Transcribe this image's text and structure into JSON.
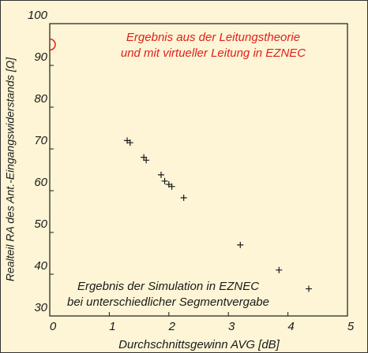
{
  "chart_data": {
    "type": "scatter",
    "xlabel": "Durchschnittsgewinn AVG [dB]",
    "ylabel": "Realteil RA des Ant.-Eingangswiderstands [Ω]",
    "xlim": [
      0,
      5
    ],
    "xticks": [
      0,
      1,
      2,
      3,
      4,
      5
    ],
    "ylim": [
      30,
      100
    ],
    "yticks": [
      30,
      40,
      50,
      60,
      70,
      80,
      90,
      100
    ],
    "grid": false,
    "background": "#fdf5d6",
    "series": [
      {
        "color": "#1a1a1a",
        "marker": "plus",
        "x": [
          1.3,
          1.35,
          1.58,
          1.62,
          1.87,
          1.93,
          2.0,
          2.05,
          2.25,
          3.2,
          3.85,
          4.35
        ],
        "values": [
          72,
          71.5,
          68,
          67.3,
          63.8,
          62.3,
          61.5,
          61,
          58.3,
          47,
          41,
          36.5
        ]
      },
      {
        "color": "#e0201b",
        "marker": "circle",
        "x": [
          0
        ],
        "values": [
          95
        ]
      }
    ],
    "annotations": [
      {
        "text": "Ergebnis aus der Leitungstheorie",
        "color": "#e0201b"
      },
      {
        "text": "und mit virtueller Leitung in EZNEC",
        "color": "#e0201b"
      },
      {
        "text": "Ergebnis der Simulation in EZNEC",
        "color": "#1a1a1a"
      },
      {
        "text": "bei unterschiedlicher Segmentvergabe",
        "color": "#1a1a1a"
      }
    ]
  }
}
